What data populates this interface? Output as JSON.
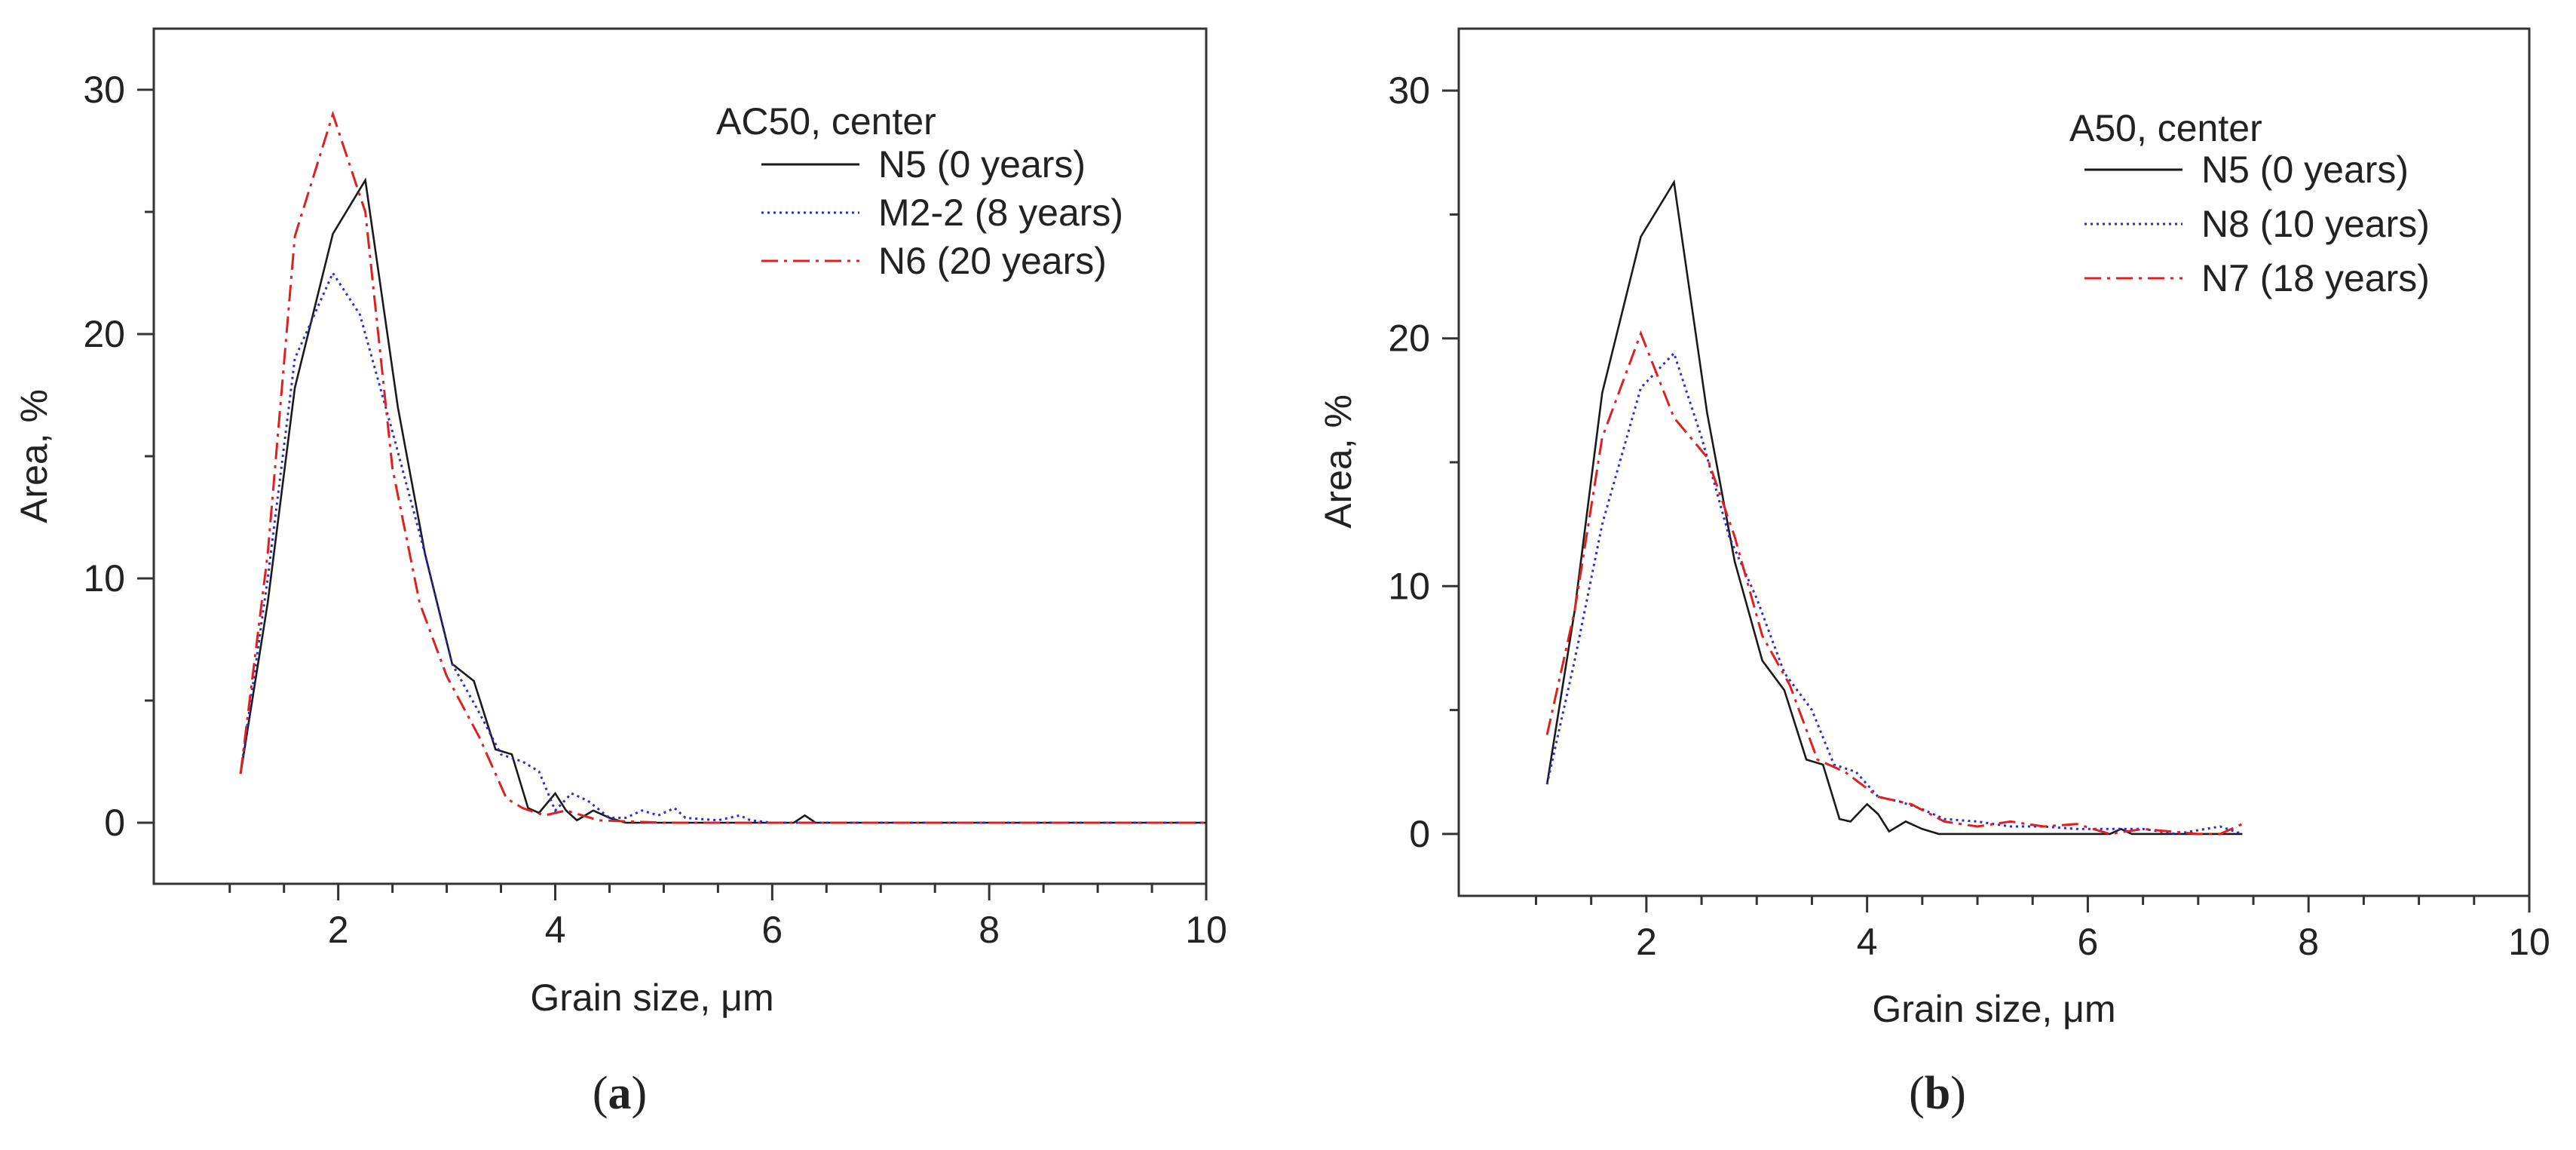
{
  "colors": {
    "black": "#1a1a1a",
    "blue": "#2b2bd6",
    "red": "#e02020"
  },
  "chart_data": [
    {
      "type": "line",
      "panel_label": "(a)",
      "panel_letter": "a",
      "xlabel": "Grain size, μm",
      "ylabel": "Area, %",
      "xlim": [
        0.3,
        10
      ],
      "ylim": [
        -2.5,
        32.5
      ],
      "xticks": [
        2,
        4,
        6,
        8,
        10
      ],
      "yticks": [
        0,
        10,
        20,
        30
      ],
      "legend_title": "AC50, center",
      "legend_position": "top-right",
      "series": [
        {
          "name": "N5 (0 years)",
          "style": "solid",
          "color": "#1a1a1a",
          "x": [
            1.1,
            1.35,
            1.6,
            1.95,
            2.25,
            2.55,
            2.8,
            3.05,
            3.25,
            3.45,
            3.6,
            3.75,
            3.85,
            4.0,
            4.1,
            4.2,
            4.35,
            4.5,
            4.65,
            5.0,
            6.2,
            6.3,
            6.4,
            7.0,
            8.0,
            10.0
          ],
          "y": [
            2.0,
            9.0,
            17.8,
            24.1,
            26.3,
            17.0,
            11.0,
            6.5,
            5.8,
            3.0,
            2.8,
            0.6,
            0.4,
            1.2,
            0.5,
            0.1,
            0.5,
            0.2,
            0.0,
            0.0,
            0.0,
            0.3,
            0.0,
            0.0,
            0.0,
            0.0
          ]
        },
        {
          "name": "M2-2 (8 years)",
          "style": "dotted",
          "color": "#2b2bd6",
          "x": [
            1.1,
            1.35,
            1.6,
            1.95,
            2.2,
            2.5,
            2.8,
            3.05,
            3.3,
            3.5,
            3.7,
            3.85,
            4.0,
            4.15,
            4.3,
            4.5,
            4.65,
            4.8,
            4.95,
            5.1,
            5.2,
            5.5,
            5.7,
            5.8,
            6.0,
            7.0,
            10.0
          ],
          "y": [
            2.0,
            10.0,
            19.0,
            22.5,
            20.8,
            16.0,
            11.0,
            6.5,
            4.5,
            2.8,
            2.5,
            2.1,
            0.5,
            1.2,
            0.9,
            0.2,
            0.2,
            0.5,
            0.3,
            0.6,
            0.2,
            0.1,
            0.3,
            0.1,
            0.0,
            0.0,
            0.0
          ]
        },
        {
          "name": "N6 (20 years)",
          "style": "dashdot",
          "color": "#e02020",
          "x": [
            1.1,
            1.35,
            1.6,
            1.95,
            2.25,
            2.5,
            2.75,
            3.0,
            3.3,
            3.55,
            3.7,
            3.9,
            4.1,
            4.4,
            5.0,
            6.0,
            8.0,
            10.0
          ],
          "y": [
            2.0,
            11.0,
            24.0,
            29.0,
            25.0,
            14.5,
            9.0,
            6.0,
            3.5,
            1.0,
            0.6,
            0.3,
            0.5,
            0.1,
            0.0,
            0.0,
            0.0,
            0.0
          ]
        }
      ]
    },
    {
      "type": "line",
      "panel_label": "(b)",
      "panel_letter": "b",
      "xlabel": "Grain size, μm",
      "ylabel": "Area, %",
      "xlim": [
        0.3,
        10
      ],
      "ylim": [
        -2.5,
        32.5
      ],
      "xticks": [
        2,
        4,
        6,
        8,
        10
      ],
      "yticks": [
        0,
        10,
        20,
        30
      ],
      "legend_title": "A50, center",
      "legend_position": "top-right",
      "series": [
        {
          "name": "N5 (0 years)",
          "style": "solid",
          "color": "#1a1a1a",
          "x": [
            1.1,
            1.35,
            1.6,
            1.95,
            2.25,
            2.55,
            2.8,
            3.05,
            3.25,
            3.45,
            3.6,
            3.75,
            3.85,
            4.0,
            4.1,
            4.2,
            4.35,
            4.5,
            4.65,
            5.0,
            6.2,
            6.3,
            6.4,
            7.0,
            7.4
          ],
          "y": [
            2.0,
            9.0,
            17.8,
            24.1,
            26.3,
            17.0,
            11.0,
            7.0,
            5.8,
            3.0,
            2.8,
            0.6,
            0.5,
            1.2,
            0.8,
            0.1,
            0.5,
            0.2,
            0.0,
            0.0,
            0.0,
            0.2,
            0.0,
            0.0,
            0.0
          ]
        },
        {
          "name": "N8 (10 years)",
          "style": "dotted",
          "color": "#2b2bd6",
          "x": [
            1.1,
            1.35,
            1.6,
            1.95,
            2.25,
            2.5,
            2.75,
            3.0,
            3.25,
            3.5,
            3.7,
            3.9,
            4.1,
            4.3,
            4.5,
            4.7,
            5.0,
            5.3,
            5.6,
            5.9,
            6.2,
            6.5,
            6.8,
            7.2,
            7.4
          ],
          "y": [
            2.0,
            7.0,
            12.5,
            18.0,
            19.4,
            16.0,
            12.0,
            9.5,
            6.5,
            5.0,
            2.8,
            2.5,
            1.5,
            1.3,
            1.0,
            0.6,
            0.5,
            0.3,
            0.3,
            0.2,
            0.2,
            0.2,
            0.0,
            0.3,
            0.0
          ]
        },
        {
          "name": "N7 (18 years)",
          "style": "dashdot",
          "color": "#e02020",
          "x": [
            1.1,
            1.35,
            1.6,
            1.95,
            2.25,
            2.55,
            2.8,
            3.05,
            3.3,
            3.55,
            3.8,
            4.1,
            4.4,
            4.7,
            5.0,
            5.3,
            5.6,
            5.9,
            6.2,
            6.5,
            7.0,
            7.2,
            7.4
          ],
          "y": [
            4.0,
            9.0,
            16.0,
            20.2,
            16.8,
            15.2,
            12.0,
            8.0,
            6.0,
            3.0,
            2.5,
            1.5,
            1.2,
            0.5,
            0.3,
            0.5,
            0.3,
            0.4,
            0.0,
            0.2,
            0.0,
            0.0,
            0.4
          ]
        }
      ]
    }
  ]
}
